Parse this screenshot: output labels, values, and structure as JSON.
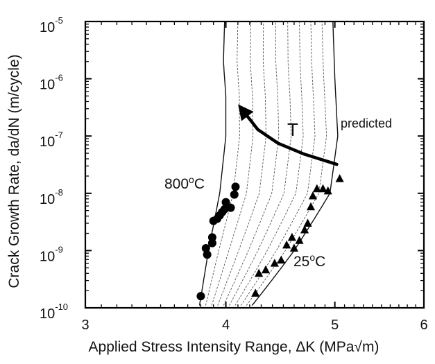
{
  "chart_data": {
    "type": "scatter",
    "title": "",
    "xlabel": "Applied Stress Intensity Range, ΔK (MPa√m)",
    "ylabel": "Crack Growth Rate, da/dN (m/cycle)",
    "x_scale": "log",
    "y_scale": "log",
    "xlim": [
      3,
      6
    ],
    "ylim": [
      1e-10,
      1e-05
    ],
    "x_ticks": [
      {
        "value": 3,
        "label": "3"
      },
      {
        "value": 4,
        "label": "4"
      },
      {
        "value": 5,
        "label": "5"
      },
      {
        "value": 6,
        "label": "6"
      }
    ],
    "y_ticks": [
      {
        "value": 1e-10,
        "base": "10",
        "exp": "-10"
      },
      {
        "value": 1e-09,
        "base": "10",
        "exp": "-9"
      },
      {
        "value": 1e-08,
        "base": "10",
        "exp": "-8"
      },
      {
        "value": 1e-07,
        "base": "10",
        "exp": "-7"
      },
      {
        "value": 1e-06,
        "base": "10",
        "exp": "-6"
      },
      {
        "value": 1e-05,
        "base": "10",
        "exp": "-5"
      }
    ],
    "grid": false,
    "series": [
      {
        "name": "800°C",
        "marker": "circle",
        "color": "#000000",
        "points": [
          [
            3.8,
            1.6e-10
          ],
          [
            3.84,
            1.1e-09
          ],
          [
            3.85,
            8.5e-10
          ],
          [
            3.89,
            1.35e-09
          ],
          [
            3.89,
            1.7e-09
          ],
          [
            3.9,
            3.3e-09
          ],
          [
            3.93,
            3.6e-09
          ],
          [
            3.95,
            4.1e-09
          ],
          [
            3.97,
            4.7e-09
          ],
          [
            3.99,
            5.3e-09
          ],
          [
            4.0,
            7e-09
          ],
          [
            4.04,
            5.6e-09
          ],
          [
            4.07,
            9.5e-09
          ],
          [
            4.08,
            1.3e-08
          ]
        ]
      },
      {
        "name": "25°C",
        "marker": "triangle",
        "color": "#000000",
        "points": [
          [
            4.25,
            1.8e-10
          ],
          [
            4.28,
            4e-10
          ],
          [
            4.34,
            4.6e-10
          ],
          [
            4.42,
            6e-10
          ],
          [
            4.48,
            6.8e-10
          ],
          [
            4.53,
            1.25e-09
          ],
          [
            4.58,
            1.7e-09
          ],
          [
            4.6,
            1.1e-09
          ],
          [
            4.65,
            1.5e-09
          ],
          [
            4.7,
            2.3e-09
          ],
          [
            4.73,
            3e-09
          ],
          [
            4.76,
            5.8e-09
          ],
          [
            4.78,
            9e-09
          ],
          [
            4.82,
            1.2e-08
          ],
          [
            4.88,
            1.2e-08
          ],
          [
            4.93,
            1.1e-08
          ],
          [
            5.05,
            1.8e-08
          ]
        ]
      }
    ],
    "predicted_curves": {
      "label": "predicted",
      "hot_boundary": [
        [
          3.79,
          1.1e-10
        ],
        [
          3.86,
          1e-09
        ],
        [
          3.95,
          1e-08
        ],
        [
          4.0,
          1e-07
        ],
        [
          4.0,
          5e-07
        ],
        [
          3.98,
          2e-06
        ],
        [
          3.99,
          1e-05
        ]
      ],
      "cold_boundary": [
        [
          4.22,
          1.1e-10
        ],
        [
          4.6,
          1e-09
        ],
        [
          4.95,
          1e-08
        ],
        [
          5.03,
          1e-07
        ],
        [
          5.0,
          1e-06
        ],
        [
          4.98,
          1e-05
        ]
      ],
      "intermediate_count": 8,
      "color": "#555555"
    },
    "arrow": {
      "label": "T",
      "points": [
        [
          5.02,
          3.2e-08
        ],
        [
          4.7,
          4.8e-08
        ],
        [
          4.45,
          7.5e-08
        ],
        [
          4.27,
          1.3e-07
        ],
        [
          4.13,
          3e-07
        ]
      ]
    },
    "annotations": [
      {
        "text": "800",
        "sup": "o",
        "tail": "C"
      },
      {
        "text": "25",
        "sup": "o",
        "tail": "C"
      }
    ]
  }
}
